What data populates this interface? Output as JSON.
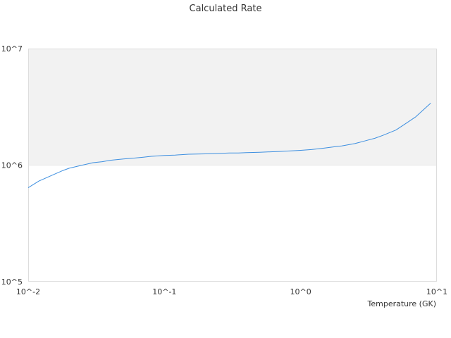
{
  "chart_data": {
    "type": "line",
    "title": "Calculated Rate",
    "xlabel": "Temperature (GK)",
    "ylabel": "",
    "xscale": "log",
    "yscale": "log",
    "xlim": [
      0.01,
      10
    ],
    "ylim": [
      100000,
      10000000
    ],
    "x_ticks": [
      "10^-2",
      "10^-1",
      "10^0",
      "10^1"
    ],
    "y_ticks": [
      "10^5",
      "10^6",
      "10^7"
    ],
    "grid": false,
    "legend": "none",
    "band": {
      "from": 1000000,
      "to": 10000000,
      "color": "#f2f2f2"
    },
    "colors": {
      "line": "#3d8fe0",
      "plot_border": "#dddddd",
      "band": "#f2f2f2"
    },
    "series": [
      {
        "x": [
          0.01,
          0.012,
          0.015,
          0.018,
          0.02,
          0.025,
          0.03,
          0.035,
          0.04,
          0.05,
          0.06,
          0.07,
          0.08,
          0.09,
          0.1,
          0.12,
          0.15,
          0.2,
          0.25,
          0.3,
          0.35,
          0.4,
          0.5,
          0.6,
          0.7,
          0.8,
          0.9,
          1.0,
          1.2,
          1.5,
          1.8,
          2.0,
          2.5,
          3.0,
          3.5,
          4.0,
          5.0,
          6.0,
          7.0,
          8.0,
          9.0
        ],
        "y": [
          640000,
          730000,
          820000,
          900000,
          940000,
          1000000,
          1050000,
          1070000,
          1100000,
          1130000,
          1150000,
          1170000,
          1190000,
          1200000,
          1210000,
          1220000,
          1240000,
          1250000,
          1260000,
          1270000,
          1270000,
          1280000,
          1290000,
          1300000,
          1310000,
          1320000,
          1330000,
          1340000,
          1360000,
          1400000,
          1440000,
          1460000,
          1530000,
          1620000,
          1700000,
          1800000,
          2000000,
          2300000,
          2600000,
          3000000,
          3400000
        ]
      }
    ]
  }
}
